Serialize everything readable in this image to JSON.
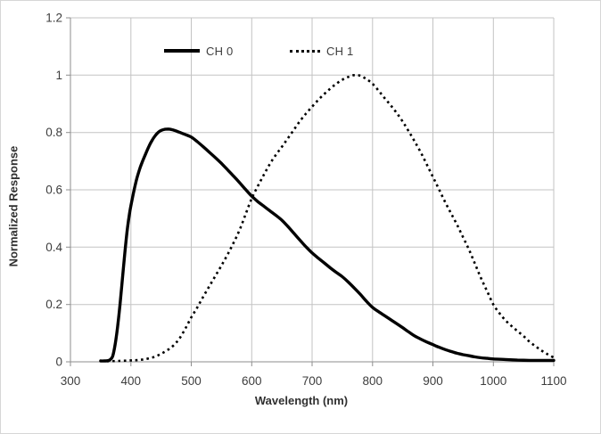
{
  "chart_data": {
    "type": "line",
    "title": "",
    "xlabel": "Wavelength (nm)",
    "ylabel": "Normalized Response",
    "xlim": [
      300,
      1100
    ],
    "ylim": [
      0,
      1.2
    ],
    "xticks": [
      300,
      400,
      500,
      600,
      700,
      800,
      900,
      1000,
      1100
    ],
    "yticks": [
      0,
      0.2,
      0.4,
      0.6,
      0.8,
      1,
      1.2
    ],
    "ytick_labels": [
      "0",
      "0.2",
      "0.4",
      "0.6",
      "0.8",
      "1",
      "1.2"
    ],
    "grid": true,
    "legend_position": "top-inside",
    "colors": {
      "series": "#000000",
      "gridline": "#c3c3c3",
      "axis": "#8e8e8e",
      "tick_text": "#3d3d3d",
      "background": "#ffffff"
    },
    "series": [
      {
        "name": "CH 0",
        "style": "solid",
        "color": "#000000",
        "points": [
          [
            350,
            0.003
          ],
          [
            356,
            0.003
          ],
          [
            362,
            0.004
          ],
          [
            366,
            0.008
          ],
          [
            370,
            0.02
          ],
          [
            374,
            0.06
          ],
          [
            378,
            0.12
          ],
          [
            382,
            0.2
          ],
          [
            386,
            0.29
          ],
          [
            390,
            0.38
          ],
          [
            394,
            0.46
          ],
          [
            398,
            0.52
          ],
          [
            402,
            0.565
          ],
          [
            406,
            0.605
          ],
          [
            410,
            0.64
          ],
          [
            415,
            0.675
          ],
          [
            420,
            0.703
          ],
          [
            425,
            0.728
          ],
          [
            430,
            0.752
          ],
          [
            435,
            0.772
          ],
          [
            440,
            0.788
          ],
          [
            445,
            0.8
          ],
          [
            450,
            0.807
          ],
          [
            456,
            0.811
          ],
          [
            462,
            0.812
          ],
          [
            468,
            0.81
          ],
          [
            474,
            0.806
          ],
          [
            480,
            0.801
          ],
          [
            490,
            0.793
          ],
          [
            500,
            0.784
          ],
          [
            510,
            0.768
          ],
          [
            520,
            0.75
          ],
          [
            530,
            0.731
          ],
          [
            540,
            0.712
          ],
          [
            550,
            0.692
          ],
          [
            560,
            0.67
          ],
          [
            570,
            0.648
          ],
          [
            580,
            0.625
          ],
          [
            590,
            0.601
          ],
          [
            600,
            0.578
          ],
          [
            610,
            0.559
          ],
          [
            620,
            0.543
          ],
          [
            630,
            0.527
          ],
          [
            640,
            0.511
          ],
          [
            650,
            0.494
          ],
          [
            660,
            0.472
          ],
          [
            670,
            0.448
          ],
          [
            680,
            0.424
          ],
          [
            690,
            0.401
          ],
          [
            700,
            0.38
          ],
          [
            710,
            0.362
          ],
          [
            720,
            0.345
          ],
          [
            730,
            0.328
          ],
          [
            740,
            0.312
          ],
          [
            750,
            0.297
          ],
          [
            760,
            0.278
          ],
          [
            770,
            0.257
          ],
          [
            780,
            0.235
          ],
          [
            790,
            0.211
          ],
          [
            800,
            0.19
          ],
          [
            810,
            0.175
          ],
          [
            820,
            0.161
          ],
          [
            830,
            0.147
          ],
          [
            840,
            0.133
          ],
          [
            850,
            0.119
          ],
          [
            860,
            0.104
          ],
          [
            870,
            0.09
          ],
          [
            880,
            0.079
          ],
          [
            890,
            0.069
          ],
          [
            900,
            0.06
          ],
          [
            910,
            0.051
          ],
          [
            920,
            0.043
          ],
          [
            930,
            0.036
          ],
          [
            940,
            0.03
          ],
          [
            950,
            0.025
          ],
          [
            960,
            0.021
          ],
          [
            970,
            0.017
          ],
          [
            980,
            0.014
          ],
          [
            990,
            0.012
          ],
          [
            1000,
            0.01
          ],
          [
            1020,
            0.008
          ],
          [
            1040,
            0.006
          ],
          [
            1060,
            0.005
          ],
          [
            1080,
            0.005
          ],
          [
            1100,
            0.005
          ]
        ]
      },
      {
        "name": "CH 1",
        "style": "dotted",
        "color": "#000000",
        "points": [
          [
            360,
            0.002
          ],
          [
            380,
            0.003
          ],
          [
            400,
            0.005
          ],
          [
            410,
            0.006
          ],
          [
            420,
            0.008
          ],
          [
            430,
            0.012
          ],
          [
            440,
            0.018
          ],
          [
            450,
            0.028
          ],
          [
            460,
            0.04
          ],
          [
            470,
            0.056
          ],
          [
            480,
            0.08
          ],
          [
            490,
            0.115
          ],
          [
            500,
            0.155
          ],
          [
            510,
            0.19
          ],
          [
            520,
            0.228
          ],
          [
            530,
            0.264
          ],
          [
            540,
            0.3
          ],
          [
            550,
            0.336
          ],
          [
            560,
            0.374
          ],
          [
            570,
            0.415
          ],
          [
            580,
            0.46
          ],
          [
            590,
            0.515
          ],
          [
            600,
            0.57
          ],
          [
            610,
            0.612
          ],
          [
            620,
            0.652
          ],
          [
            630,
            0.69
          ],
          [
            640,
            0.722
          ],
          [
            650,
            0.75
          ],
          [
            660,
            0.78
          ],
          [
            670,
            0.81
          ],
          [
            680,
            0.84
          ],
          [
            690,
            0.866
          ],
          [
            700,
            0.89
          ],
          [
            710,
            0.913
          ],
          [
            720,
            0.934
          ],
          [
            730,
            0.953
          ],
          [
            740,
            0.97
          ],
          [
            750,
            0.984
          ],
          [
            760,
            0.994
          ],
          [
            770,
            1.0
          ],
          [
            780,
            0.998
          ],
          [
            790,
            0.986
          ],
          [
            800,
            0.97
          ],
          [
            810,
            0.946
          ],
          [
            820,
            0.92
          ],
          [
            830,
            0.895
          ],
          [
            840,
            0.868
          ],
          [
            850,
            0.838
          ],
          [
            860,
            0.804
          ],
          [
            870,
            0.768
          ],
          [
            880,
            0.73
          ],
          [
            890,
            0.688
          ],
          [
            900,
            0.645
          ],
          [
            910,
            0.602
          ],
          [
            920,
            0.558
          ],
          [
            930,
            0.518
          ],
          [
            940,
            0.478
          ],
          [
            950,
            0.434
          ],
          [
            960,
            0.39
          ],
          [
            970,
            0.34
          ],
          [
            980,
            0.29
          ],
          [
            990,
            0.245
          ],
          [
            1000,
            0.2
          ],
          [
            1010,
            0.17
          ],
          [
            1020,
            0.145
          ],
          [
            1030,
            0.125
          ],
          [
            1040,
            0.107
          ],
          [
            1050,
            0.09
          ],
          [
            1060,
            0.07
          ],
          [
            1070,
            0.054
          ],
          [
            1080,
            0.039
          ],
          [
            1090,
            0.026
          ],
          [
            1100,
            0.015
          ]
        ]
      }
    ]
  }
}
